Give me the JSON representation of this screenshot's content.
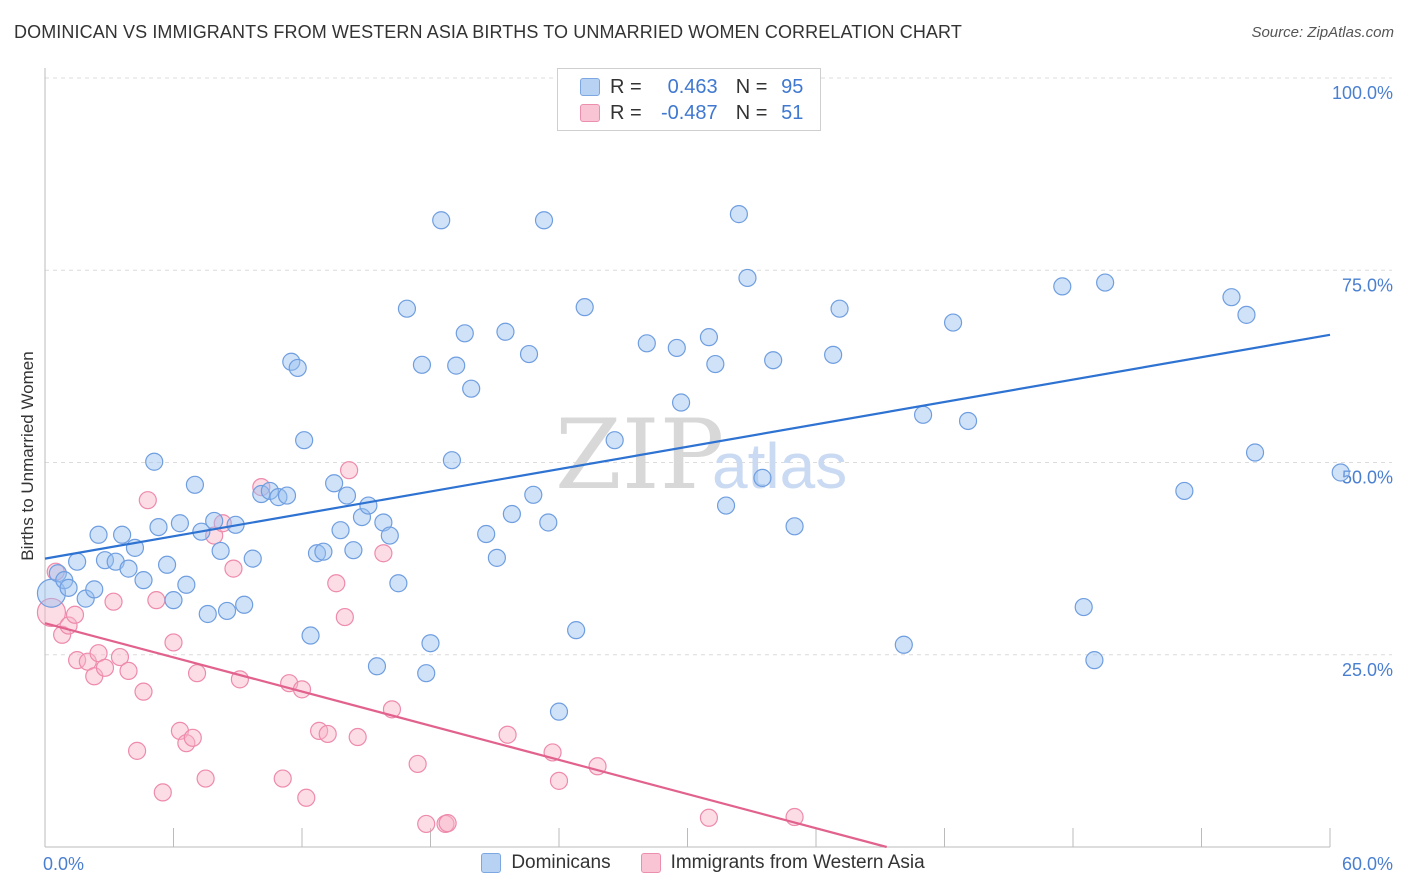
{
  "title": "DOMINICAN VS IMMIGRANTS FROM WESTERN ASIA BIRTHS TO UNMARRIED WOMEN CORRELATION CHART",
  "source": "Source: ZipAtlas.com",
  "watermark": {
    "zip": "ZIP",
    "atlas": "atlas"
  },
  "legend": {
    "r_label": "R =",
    "n_label": "N =",
    "rows": [
      {
        "r": "0.463",
        "n": "95",
        "color": "#b8d2f3",
        "border": "#7da7e0"
      },
      {
        "r": "-0.487",
        "n": "51",
        "color": "#f9c5d5",
        "border": "#ec8fae"
      }
    ]
  },
  "bottom_legend": [
    {
      "label": "Dominicans",
      "color": "#b8d2f3",
      "border": "#7da7e0"
    },
    {
      "label": "Immigrants from Western Asia",
      "color": "#f9c5d5",
      "border": "#ec8fae"
    }
  ],
  "colors": {
    "blue_fill": "rgba(150,190,240,0.45)",
    "blue_stroke": "#6f9ee0",
    "blue_line": "#2e72d2",
    "pink_fill": "rgba(248,180,200,0.45)",
    "pink_stroke": "#ee8aab",
    "pink_line": "#e2628e"
  },
  "chart_data": {
    "type": "scatter",
    "title": "DOMINICAN VS IMMIGRANTS FROM WESTERN ASIA BIRTHS TO UNMARRIED WOMEN CORRELATION CHART",
    "xlabel": "",
    "ylabel": "Births to Unmarried Women",
    "xlim": [
      0,
      60
    ],
    "ylim": [
      0,
      100
    ],
    "x_tick_labels": [
      "0.0%",
      "60.0%"
    ],
    "y_ticks": [
      25,
      50,
      75,
      100
    ],
    "y_tick_labels": [
      "25.0%",
      "50.0%",
      "75.0%",
      "100.0%"
    ],
    "grid": true,
    "legend_position": "top-center",
    "series": [
      {
        "name": "Dominicans",
        "r": 0.463,
        "n": 95,
        "trend": [
          [
            0,
            37.5
          ],
          [
            60,
            66.6
          ]
        ],
        "points": [
          [
            0.3,
            33.0
          ],
          [
            0.6,
            35.6
          ],
          [
            0.9,
            34.7
          ],
          [
            1.1,
            33.7
          ],
          [
            1.5,
            37.1
          ],
          [
            1.9,
            32.3
          ],
          [
            2.3,
            33.5
          ],
          [
            2.5,
            40.6
          ],
          [
            2.8,
            37.3
          ],
          [
            3.3,
            37.1
          ],
          [
            3.6,
            40.6
          ],
          [
            3.9,
            36.2
          ],
          [
            4.2,
            38.9
          ],
          [
            4.6,
            34.7
          ],
          [
            5.1,
            50.1
          ],
          [
            5.3,
            41.6
          ],
          [
            5.7,
            36.7
          ],
          [
            6.0,
            32.1
          ],
          [
            6.3,
            42.1
          ],
          [
            6.6,
            34.1
          ],
          [
            7.0,
            47.1
          ],
          [
            7.3,
            41.0
          ],
          [
            7.6,
            30.3
          ],
          [
            7.9,
            42.4
          ],
          [
            8.2,
            38.5
          ],
          [
            8.5,
            30.7
          ],
          [
            8.9,
            41.9
          ],
          [
            9.3,
            31.5
          ],
          [
            9.7,
            37.5
          ],
          [
            10.1,
            45.9
          ],
          [
            10.5,
            46.3
          ],
          [
            10.9,
            45.5
          ],
          [
            11.3,
            45.7
          ],
          [
            11.5,
            63.1
          ],
          [
            11.8,
            62.3
          ],
          [
            12.1,
            52.9
          ],
          [
            12.4,
            27.5
          ],
          [
            12.7,
            38.2
          ],
          [
            13.0,
            38.4
          ],
          [
            13.5,
            47.3
          ],
          [
            13.8,
            41.2
          ],
          [
            14.1,
            45.7
          ],
          [
            14.4,
            38.6
          ],
          [
            14.8,
            42.9
          ],
          [
            15.1,
            44.4
          ],
          [
            15.5,
            23.5
          ],
          [
            15.8,
            42.2
          ],
          [
            16.1,
            40.5
          ],
          [
            16.5,
            34.3
          ],
          [
            16.9,
            70.0
          ],
          [
            17.6,
            62.7
          ],
          [
            17.8,
            22.6
          ],
          [
            18.0,
            26.5
          ],
          [
            18.5,
            81.5
          ],
          [
            19.0,
            50.3
          ],
          [
            19.2,
            62.6
          ],
          [
            19.6,
            66.8
          ],
          [
            19.9,
            59.6
          ],
          [
            20.6,
            40.7
          ],
          [
            21.1,
            37.6
          ],
          [
            21.5,
            67.0
          ],
          [
            21.8,
            43.3
          ],
          [
            22.6,
            64.1
          ],
          [
            22.8,
            45.8
          ],
          [
            23.3,
            81.5
          ],
          [
            23.5,
            42.2
          ],
          [
            24.0,
            17.6
          ],
          [
            24.8,
            28.2
          ],
          [
            25.2,
            70.2
          ],
          [
            26.6,
            52.9
          ],
          [
            28.1,
            65.5
          ],
          [
            29.5,
            64.9
          ],
          [
            29.7,
            57.8
          ],
          [
            31.0,
            66.3
          ],
          [
            31.3,
            62.8
          ],
          [
            31.8,
            44.4
          ],
          [
            32.4,
            82.3
          ],
          [
            32.8,
            74.0
          ],
          [
            33.5,
            48.0
          ],
          [
            34.0,
            63.3
          ],
          [
            35.0,
            41.7
          ],
          [
            36.8,
            64.0
          ],
          [
            37.1,
            70.0
          ],
          [
            40.1,
            26.3
          ],
          [
            41.0,
            56.2
          ],
          [
            42.4,
            68.2
          ],
          [
            43.1,
            55.4
          ],
          [
            47.5,
            72.9
          ],
          [
            48.5,
            31.2
          ],
          [
            49.0,
            24.3
          ],
          [
            49.5,
            73.4
          ],
          [
            53.2,
            46.3
          ],
          [
            55.4,
            71.5
          ],
          [
            56.1,
            69.2
          ],
          [
            56.5,
            51.3
          ],
          [
            60.5,
            48.7
          ]
        ]
      },
      {
        "name": "Immigrants from Western Asia",
        "r": -0.487,
        "n": 51,
        "trend": [
          [
            0,
            29.1
          ],
          [
            39.3,
            0
          ]
        ],
        "points": [
          [
            0.3,
            30.5
          ],
          [
            0.5,
            35.8
          ],
          [
            0.8,
            27.6
          ],
          [
            1.1,
            28.8
          ],
          [
            1.4,
            30.2
          ],
          [
            1.5,
            24.3
          ],
          [
            2.0,
            24.1
          ],
          [
            2.3,
            22.2
          ],
          [
            2.5,
            25.2
          ],
          [
            2.8,
            23.3
          ],
          [
            3.2,
            31.9
          ],
          [
            3.5,
            24.7
          ],
          [
            3.9,
            22.9
          ],
          [
            4.3,
            12.5
          ],
          [
            4.6,
            20.2
          ],
          [
            4.8,
            45.1
          ],
          [
            5.2,
            32.1
          ],
          [
            5.5,
            7.1
          ],
          [
            6.0,
            26.6
          ],
          [
            6.3,
            15.1
          ],
          [
            6.6,
            13.5
          ],
          [
            6.9,
            14.2
          ],
          [
            7.1,
            22.6
          ],
          [
            7.5,
            8.9
          ],
          [
            7.9,
            40.5
          ],
          [
            8.3,
            42.1
          ],
          [
            8.8,
            36.2
          ],
          [
            9.1,
            21.8
          ],
          [
            10.1,
            46.8
          ],
          [
            11.1,
            8.9
          ],
          [
            11.4,
            21.3
          ],
          [
            12.0,
            20.5
          ],
          [
            12.2,
            6.4
          ],
          [
            12.8,
            15.1
          ],
          [
            13.2,
            14.7
          ],
          [
            13.6,
            34.3
          ],
          [
            14.0,
            29.9
          ],
          [
            14.2,
            49.0
          ],
          [
            14.6,
            14.3
          ],
          [
            15.8,
            38.2
          ],
          [
            16.2,
            17.9
          ],
          [
            17.4,
            10.8
          ],
          [
            17.8,
            3.0
          ],
          [
            18.7,
            3.0
          ],
          [
            18.8,
            3.1
          ],
          [
            21.6,
            14.6
          ],
          [
            23.7,
            12.3
          ],
          [
            24.0,
            8.6
          ],
          [
            25.8,
            10.5
          ],
          [
            31.0,
            3.8
          ],
          [
            35.0,
            3.9
          ]
        ]
      }
    ]
  }
}
